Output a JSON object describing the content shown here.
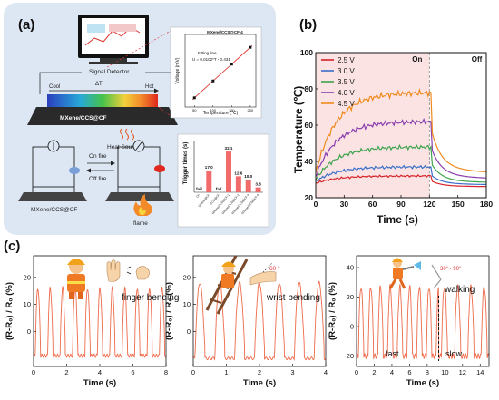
{
  "panel_labels": {
    "a": "(a)",
    "b": "(b)",
    "c": "(c)"
  },
  "panel_a": {
    "signal_detector_label": "Signal Detector",
    "cool_label": "Cool",
    "delta_t_label": "ΔT",
    "hot_label": "Hot",
    "sample_label": "MXene/CCS@CF",
    "heat_source_label": "Heat Source",
    "on_fire_label": "On fire",
    "off_fire_label": "Off fire",
    "bottom_sample_label": "MXene/CCS@CF",
    "flame_label": "flame",
    "colors": {
      "panel_bg": "#dde7f4",
      "bar": "#f26b6b",
      "fit_line": "#e0322e"
    }
  },
  "chart_data": [
    {
      "type": "scatter",
      "title": "MXene/CCS@CF-4",
      "xlabel": "Temperature (℃)",
      "ylabel": "Voltage (mV)",
      "annotation": [
        "Fitting line",
        "U = 0.0102*T - 0.431"
      ],
      "x_ticks": [
        "50",
        "100",
        "150",
        "200"
      ],
      "x": [
        50,
        100,
        150,
        200
      ],
      "y": [
        0.08,
        0.59,
        1.1,
        1.61
      ],
      "fit": {
        "slope": 0.0102,
        "intercept": -0.431
      },
      "xlim": [
        25,
        215
      ],
      "ylim": [
        -0.2,
        2.0
      ]
    },
    {
      "type": "bar",
      "ylabel": "Trigger times (s)",
      "categories": [
        "CF",
        "MXene@CF",
        "CCS@CF",
        "MXene/CCS@CF-1",
        "MXene/CCS@CF-2",
        "MXene/CCS@CF-3",
        "MXene/CCS@CF-4"
      ],
      "values": [
        0,
        17.0,
        0,
        32.1,
        12.6,
        10.0,
        3.8
      ],
      "value_labels": [
        "fail",
        "17.0",
        "fail",
        "32.1",
        "12.6",
        "10.0",
        "3.8"
      ],
      "ylim": [
        0,
        40
      ]
    },
    {
      "type": "line",
      "xlabel": "Time (s)",
      "ylabel": "Temperature (℃)",
      "x_ticks": [
        "0",
        "30",
        "60",
        "90",
        "120",
        "150",
        "180"
      ],
      "y_ticks": [
        "20",
        "40",
        "60",
        "80",
        "100"
      ],
      "xlim": [
        0,
        180
      ],
      "ylim": [
        20,
        100
      ],
      "grid": false,
      "legend_position": "top-left",
      "on_label": "On",
      "off_label": "Off",
      "on_region": [
        0,
        120
      ],
      "series": [
        {
          "name": "2.5 V",
          "color": "#d6222a",
          "start": 28,
          "plateau": 32,
          "end": 26
        },
        {
          "name": "3.0 V",
          "color": "#3a6fc9",
          "start": 29,
          "plateau": 37,
          "end": 27
        },
        {
          "name": "3.5 V",
          "color": "#3fa34d",
          "start": 30,
          "plateau": 48,
          "end": 28
        },
        {
          "name": "4.0 V",
          "color": "#8a3fb0",
          "start": 32,
          "plateau": 62,
          "end": 30
        },
        {
          "name": "4.5 V",
          "color": "#f08a1c",
          "start": 34,
          "plateau": 78,
          "end": 33
        }
      ]
    },
    {
      "type": "line",
      "xlabel": "Time (s)",
      "ylabel": "(R-R₀) / R₀ (%)",
      "annotation": "finger bending",
      "x_ticks": [
        "0",
        "2",
        "4",
        "6",
        "8"
      ],
      "y_ticks": [
        "0",
        "10",
        "20"
      ],
      "xlim": [
        0,
        8
      ],
      "ylim": [
        -13,
        28
      ],
      "period_s": 0.75,
      "peak": 16,
      "baseline": -9
    },
    {
      "type": "line",
      "xlabel": "Time (s)",
      "ylabel": "(R-R₀) / R₀ (%)",
      "annotation": "wrist bending",
      "angle_label": "60 °",
      "x_ticks": [
        "0",
        "1",
        "2",
        "3",
        "4"
      ],
      "y_ticks": [
        "0",
        "10",
        "20"
      ],
      "xlim": [
        0,
        4
      ],
      "ylim": [
        -13,
        28
      ],
      "period_s": 0.6,
      "peak": 18,
      "baseline": -10
    },
    {
      "type": "line",
      "xlabel": "Time (s)",
      "ylabel": "(R-R₀) / R₀ (%)",
      "annotation": "walking",
      "angle_label": "30°~ 90°",
      "fast_label": "fast",
      "slow_label": "slow",
      "x_ticks": [
        "0",
        "2",
        "4",
        "6",
        "8",
        "10",
        "12",
        "14"
      ],
      "y_ticks": [
        "-20",
        "0",
        "20",
        "40"
      ],
      "xlim": [
        0,
        15
      ],
      "ylim": [
        -27,
        48
      ],
      "split_x": 9.3,
      "fast_period_s": 1.1,
      "slow_period_s": 1.5,
      "peak": 27,
      "baseline": -20
    }
  ]
}
